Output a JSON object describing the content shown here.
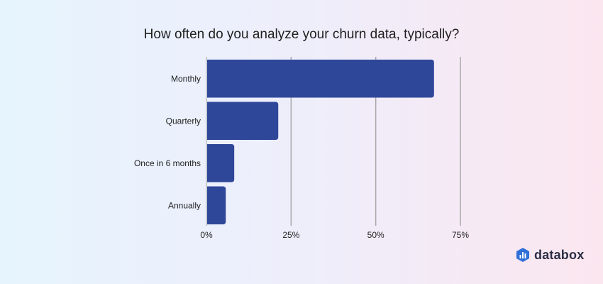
{
  "chart_data": {
    "type": "bar",
    "orientation": "horizontal",
    "title": "How often do you analyze your churn data, typically?",
    "categories": [
      "Monthly",
      "Quarterly",
      "Once in 6 months",
      "Annually"
    ],
    "values": [
      67,
      21,
      8,
      5.5
    ],
    "xlim": [
      0,
      75
    ],
    "x_ticks": [
      0,
      25,
      50,
      75
    ],
    "x_tick_labels": [
      "0%",
      "25%",
      "50%",
      "75%"
    ],
    "grid": "vertical",
    "bar_color": "#2e4799",
    "gridline_color": "#a9a9a9"
  },
  "brand": {
    "name": "databox",
    "icon": "databox-logo-icon",
    "icon_color": "#2f6fd8"
  }
}
